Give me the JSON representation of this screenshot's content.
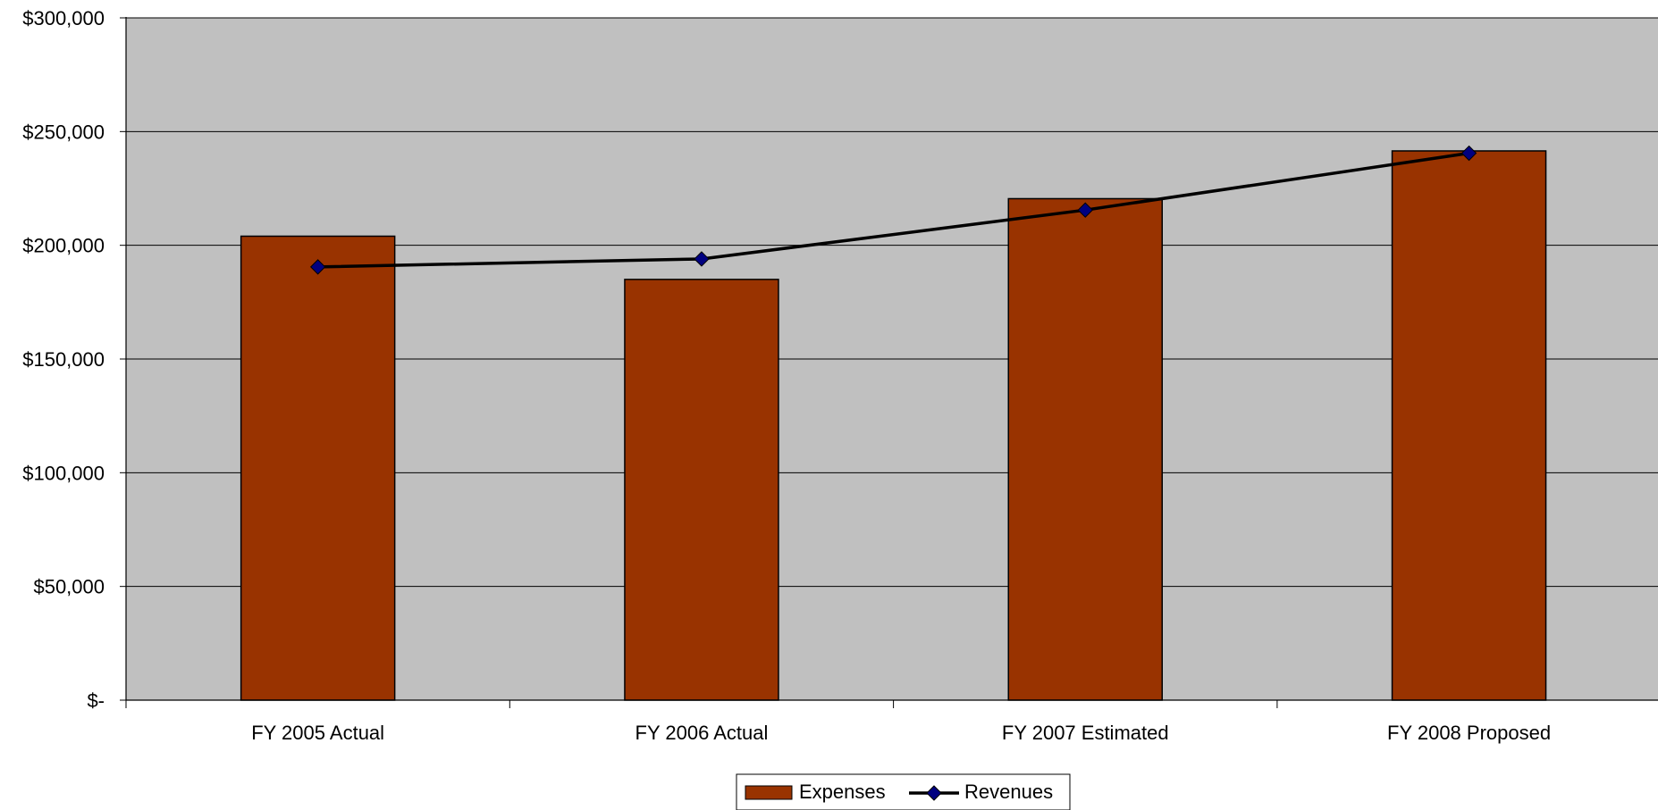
{
  "chart_data": {
    "type": "bar",
    "categories": [
      "FY 2005 Actual",
      "FY 2006 Actual",
      "FY 2007 Estimated",
      "FY 2008 Proposed"
    ],
    "series": [
      {
        "name": "Expenses",
        "type": "bar",
        "values": [
          204000,
          185000,
          220500,
          241500
        ]
      },
      {
        "name": "Revenues",
        "type": "line",
        "values": [
          190500,
          194000,
          215500,
          240500
        ]
      }
    ],
    "ylim": [
      0,
      300000
    ],
    "y_ticks": [
      0,
      50000,
      100000,
      150000,
      200000,
      250000,
      300000
    ],
    "y_tick_labels": [
      "$-",
      "$50,000",
      "$100,000",
      "$150,000",
      "$200,000",
      "$250,000",
      "$300,000"
    ],
    "title": "",
    "xlabel": "",
    "ylabel": "",
    "grid": true,
    "legend_position": "bottom-center",
    "colors": {
      "plot_background": "#c0c0c0",
      "bar_fill": "#993300",
      "line": "#000000",
      "marker_fill": "#000080",
      "gridline": "#000000"
    }
  }
}
